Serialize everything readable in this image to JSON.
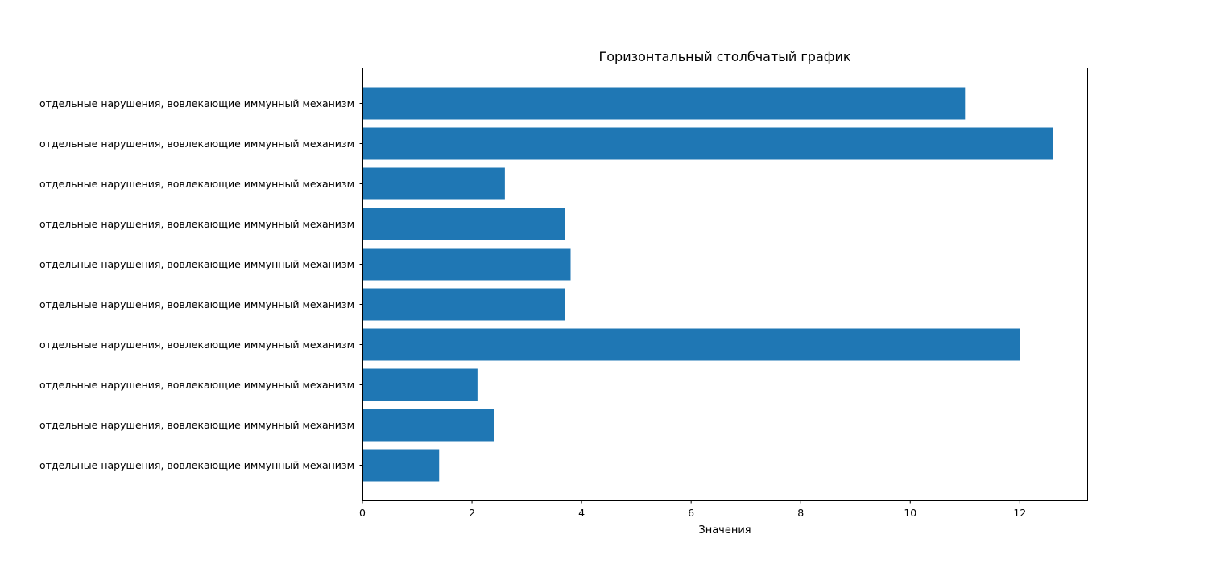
{
  "chart_data": {
    "type": "bar",
    "orientation": "horizontal",
    "title": "Горизонтальный столбчатый график",
    "xlabel": "Значения",
    "ylabel": "",
    "xlim": [
      0,
      13.23
    ],
    "xticks": [
      "0",
      "2",
      "4",
      "6",
      "8",
      "10",
      "12"
    ],
    "grid": false,
    "bar_color": "#1f77b4",
    "categories": [
      "отдельные нарушения, вовлекающие иммунный механизм",
      "отдельные нарушения, вовлекающие иммунный механизм",
      "отдельные нарушения, вовлекающие иммунный механизм",
      "отдельные нарушения, вовлекающие иммунный механизм",
      "отдельные нарушения, вовлекающие иммунный механизм",
      "отдельные нарушения, вовлекающие иммунный механизм",
      "отдельные нарушения, вовлекающие иммунный механизм",
      "отдельные нарушения, вовлекающие иммунный механизм",
      "отдельные нарушения, вовлекающие иммунный механизм",
      "отдельные нарушения, вовлекающие иммунный механизм"
    ],
    "values": [
      11.0,
      12.6,
      2.6,
      3.7,
      3.8,
      3.7,
      12.0,
      2.1,
      2.4,
      1.4
    ]
  }
}
